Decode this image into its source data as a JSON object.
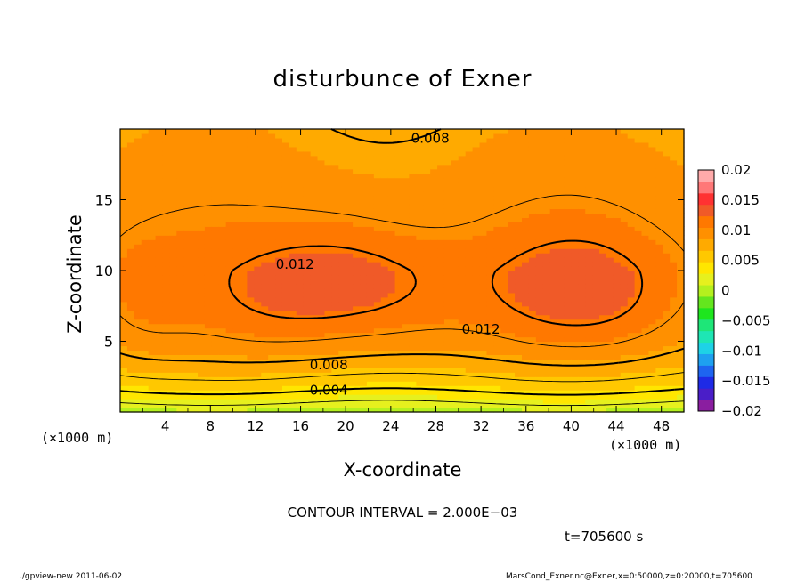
{
  "chart_data": {
    "type": "heatmap",
    "title": "disturbunce of Exner",
    "xlabel": "X-coordinate",
    "ylabel": "Z-coordinate",
    "x_unit": "(×1000 m)",
    "xlim": [
      0,
      50
    ],
    "ylim": [
      0,
      20
    ],
    "x_ticks": [
      4,
      8,
      12,
      16,
      20,
      24,
      28,
      32,
      36,
      40,
      44,
      48
    ],
    "y_ticks": [
      5,
      10,
      15
    ],
    "colorbar": {
      "range": [
        -0.02,
        0.02
      ],
      "ticks": [
        "0.02",
        "0.015",
        "0.01",
        "0.005",
        "0",
        "−0.005",
        "−0.01",
        "−0.015",
        "−0.02"
      ],
      "colors": [
        "#8a1ea0",
        "#4a1ec8",
        "#1e2ae6",
        "#1e64f0",
        "#1ea0f0",
        "#1ed2e6",
        "#1ee6b4",
        "#1ee678",
        "#1ee61e",
        "#64e61e",
        "#b4f01e",
        "#e6f01e",
        "#ffe600",
        "#ffc800",
        "#ffaa00",
        "#ff9000",
        "#ff7800",
        "#f05a28",
        "#ff3232",
        "#ff7878",
        "#ffaaaa"
      ]
    },
    "contour_labels": [
      "0.008",
      "0.012",
      "0.012",
      "0.008",
      "0.004"
    ],
    "contour_interval": "CONTOUR INTERVAL = 2.000E−03",
    "time": "t=705600 s"
  },
  "footer": {
    "left": "./gpview-new  2011-06-02",
    "right": "MarsCond_Exner.nc@Exner,x=0:50000,z=0:20000,t=705600"
  }
}
